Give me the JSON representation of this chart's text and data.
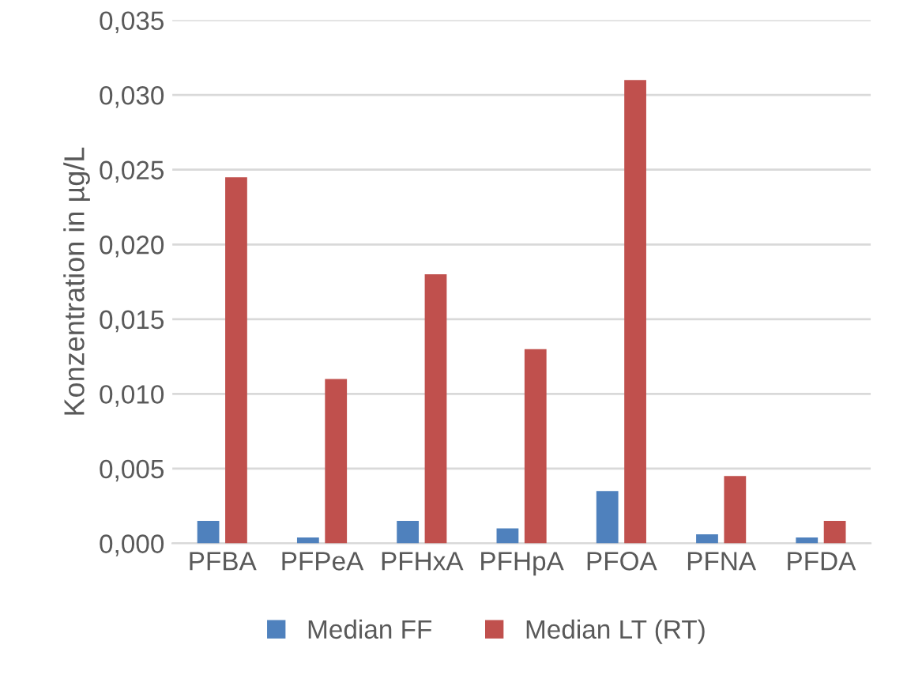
{
  "chart_data": {
    "type": "bar",
    "ylabel": "Konzentration in µg/L",
    "categories": [
      "PFBA",
      "PFPeA",
      "PFHxA",
      "PFHpA",
      "PFOA",
      "PFNA",
      "PFDA"
    ],
    "series": [
      {
        "name": "Median FF",
        "color": "#4f81bd",
        "values": [
          0.0015,
          0.0004,
          0.0015,
          0.001,
          0.0035,
          0.0006,
          0.0004
        ]
      },
      {
        "name": "Median LT (RT)",
        "color": "#c0504d",
        "values": [
          0.0245,
          0.011,
          0.018,
          0.013,
          0.031,
          0.0045,
          0.0015
        ]
      }
    ],
    "ylim": [
      0,
      0.035
    ],
    "yticks": [
      {
        "value": 0,
        "label": "0,000"
      },
      {
        "value": 0.005,
        "label": "0,005"
      },
      {
        "value": 0.01,
        "label": "0,010"
      },
      {
        "value": 0.015,
        "label": "0,015"
      },
      {
        "value": 0.02,
        "label": "0,020"
      },
      {
        "value": 0.025,
        "label": "0,025"
      },
      {
        "value": 0.03,
        "label": "0,030"
      },
      {
        "value": 0.035,
        "label": "0,035"
      }
    ],
    "grid": "y",
    "legend": "bottom"
  }
}
